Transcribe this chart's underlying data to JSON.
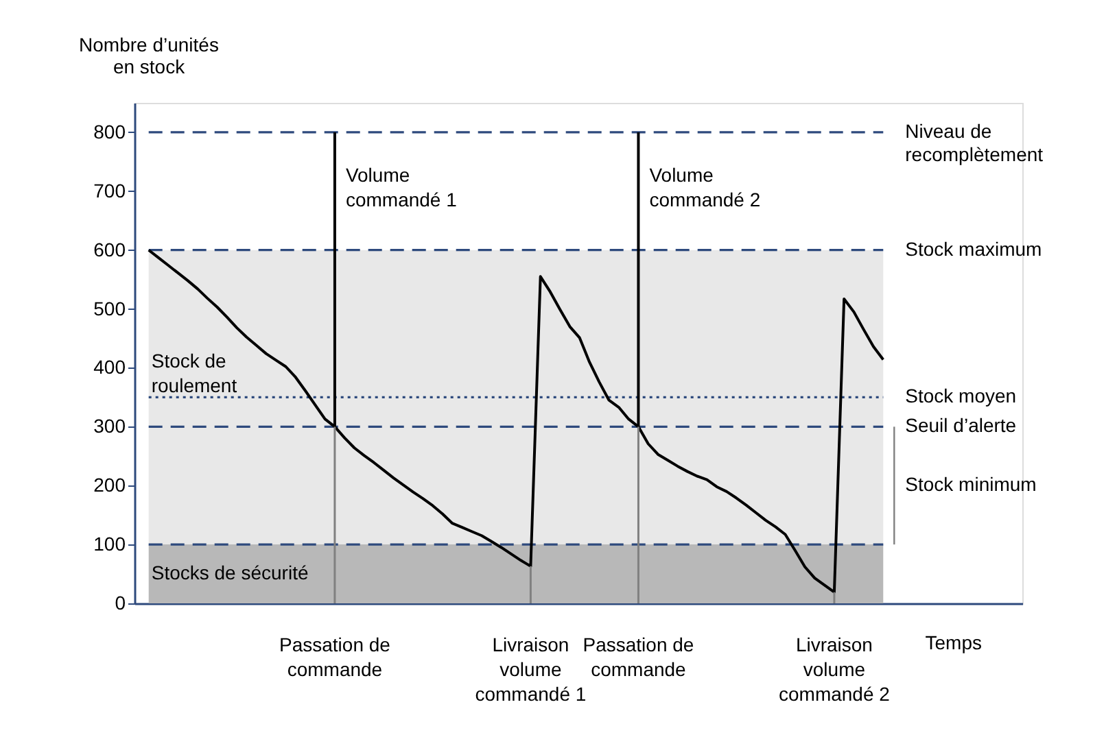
{
  "chart_data": {
    "type": "line",
    "ylabel": "Nombre d’unités en stock",
    "xlabel": "Temps",
    "categories": [
      null,
      null,
      null,
      null,
      null,
      null,
      null,
      null,
      null,
      null,
      null,
      null,
      null,
      null,
      null,
      null,
      null,
      null,
      null,
      "Passation de commande",
      null,
      null,
      null,
      null,
      null,
      null,
      null,
      null,
      null,
      null,
      null,
      null,
      null,
      null,
      null,
      null,
      null,
      null,
      null,
      "Livraison volume commandé 1",
      null,
      null,
      null,
      null,
      null,
      null,
      null,
      null,
      null,
      null,
      "Passation de commande",
      null,
      null,
      null,
      null,
      null,
      null,
      null,
      null,
      null,
      null,
      null,
      null,
      null,
      null,
      null,
      null,
      null,
      null,
      null,
      "Livraison volume commandé 2",
      null,
      null,
      null,
      null,
      null
    ],
    "ylim": [
      0,
      850
    ],
    "yticks": [
      0,
      100,
      200,
      300,
      400,
      500,
      600,
      700,
      800
    ],
    "grid": false,
    "line_style": "solid",
    "marker": "none",
    "series": [
      {
        "color": "#000000",
        "values": [
          600,
          587,
          574,
          561,
          548,
          534,
          518,
          503,
          486,
          468,
          452,
          438,
          424,
          413,
          402,
          384,
          361,
          337,
          313,
          300,
          281,
          264,
          251,
          239,
          226,
          213,
          201,
          189,
          178,
          166,
          152,
          136,
          129,
          122,
          115,
          105,
          95,
          84,
          73,
          63,
          555,
          529,
          499,
          470,
          451,
          410,
          376,
          345,
          333,
          313,
          300,
          271,
          253,
          243,
          233,
          224,
          216,
          210,
          198,
          190,
          179,
          167,
          154,
          141,
          130,
          117,
          90,
          62,
          43,
          31,
          19,
          517,
          495,
          465,
          436,
          414
        ]
      },
      {
        "type": "bar",
        "color": "#808080",
        "values": [
          null,
          null,
          null,
          null,
          null,
          null,
          null,
          null,
          null,
          null,
          null,
          null,
          null,
          null,
          null,
          null,
          null,
          null,
          null,
          300,
          null,
          null,
          null,
          null,
          null,
          null,
          null,
          null,
          null,
          null,
          null,
          null,
          null,
          null,
          null,
          null,
          null,
          null,
          null,
          63,
          null,
          null,
          null,
          null,
          null,
          null,
          null,
          null,
          null,
          null,
          300,
          null,
          null,
          null,
          null,
          null,
          null,
          null,
          null,
          null,
          null,
          null,
          null,
          null,
          null,
          null,
          null,
          null,
          null,
          null,
          19,
          null,
          null,
          null,
          null,
          null
        ]
      }
    ],
    "ref_lines": [
      {
        "axis": "y",
        "value": 800,
        "label": "Niveau de recomplètement",
        "color": "#2e4a7d",
        "line_style": "dashed"
      },
      {
        "axis": "y",
        "value": 600,
        "label": "Stock maximum",
        "color": "#2e4a7d",
        "line_style": "dashed"
      },
      {
        "axis": "y",
        "value": 350,
        "label": "Stock moyen",
        "color": "#2e4a7d",
        "line_style": "dotted"
      },
      {
        "axis": "y",
        "value": 300,
        "label": "Seuil d’alerte",
        "color": "#2e4a7d",
        "line_style": "dashed"
      },
      {
        "axis": "y",
        "value": 100,
        "color": "#2e4a7d",
        "line_style": "dashed"
      }
    ],
    "bands": [
      {
        "axis": "y",
        "from": 100,
        "to": 600,
        "label": "Stock de roulement",
        "color": "#e8e8e8"
      },
      {
        "axis": "y",
        "from": 0,
        "to": 100,
        "label": "Stocks de sécurité",
        "color": "#b8b8b8"
      }
    ],
    "annotations": [
      "Volume commandé 1",
      "Volume commandé 2",
      "Stock minimum"
    ]
  }
}
